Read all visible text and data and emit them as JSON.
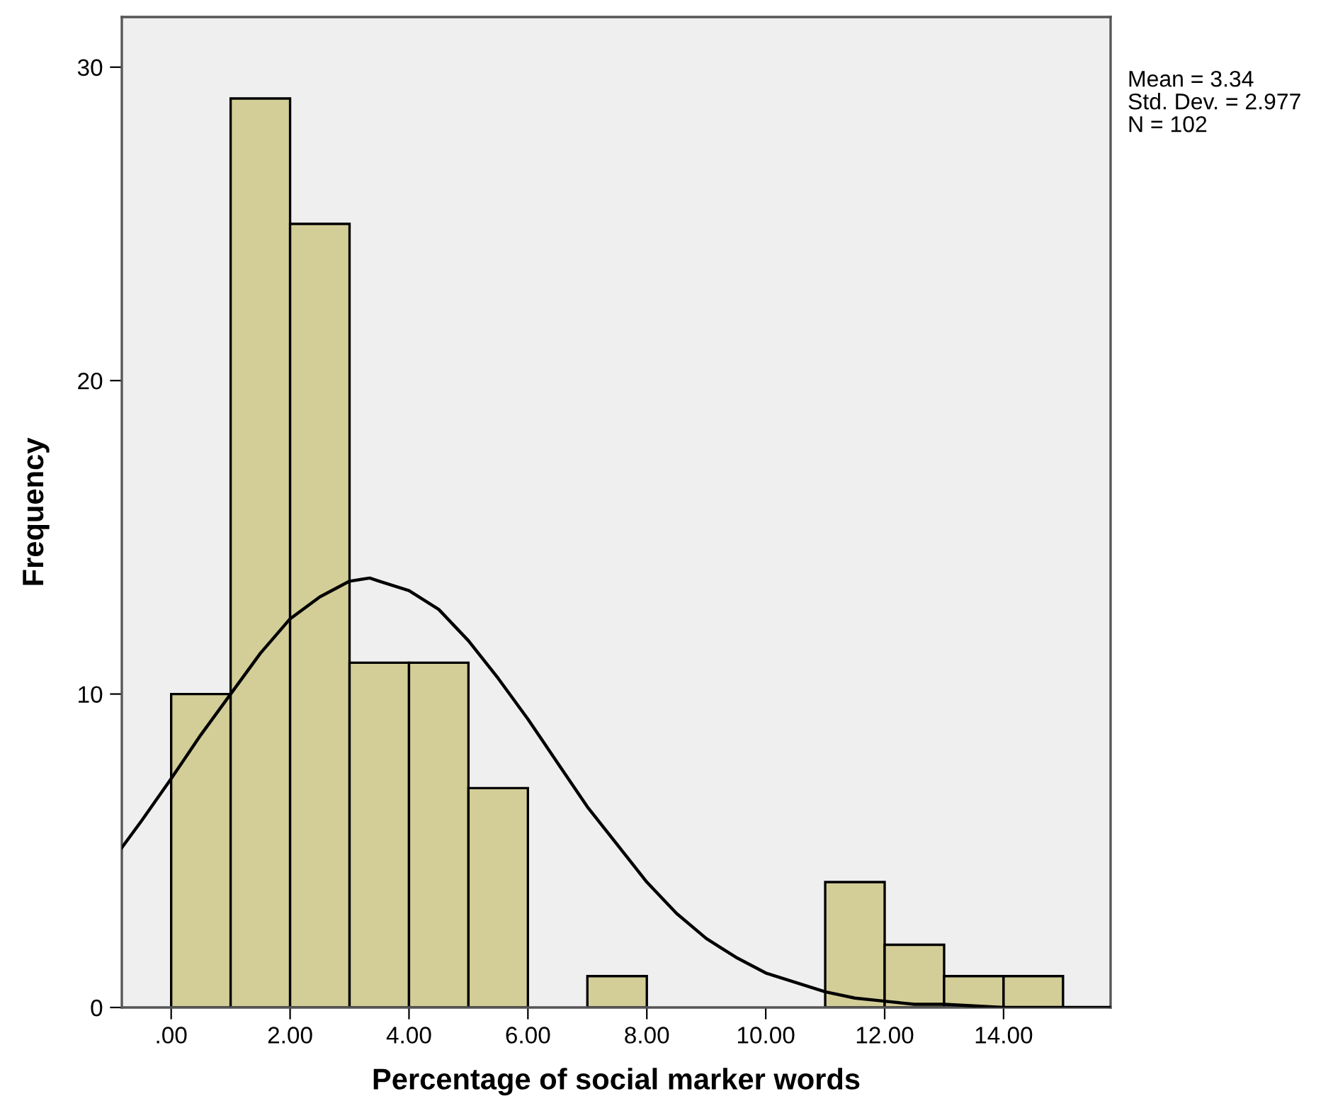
{
  "chart_data": {
    "type": "histogram",
    "xlabel": "Percentage of social marker words",
    "ylabel": "Frequency",
    "bins": [
      0,
      1,
      2,
      3,
      4,
      5,
      6,
      7,
      8,
      9,
      10,
      11,
      12,
      13,
      14,
      15
    ],
    "values": [
      10,
      29,
      25,
      11,
      11,
      7,
      0,
      1,
      0,
      0,
      0,
      4,
      2,
      1,
      1
    ],
    "color": "#d3ce97",
    "series": [
      {
        "type": "line",
        "color": "#000000",
        "x": [
          -0.83,
          -0.5,
          0,
          0.5,
          1,
          1.5,
          2,
          2.5,
          3,
          3.34,
          3.5,
          4,
          4.5,
          5,
          5.5,
          6,
          6.5,
          7,
          7.5,
          8,
          8.5,
          9,
          9.5,
          10,
          10.5,
          11,
          11.5,
          12,
          12.5,
          13,
          14,
          15,
          15.8
        ],
        "values": [
          5.1,
          5.95,
          7.3,
          8.7,
          10.0,
          11.3,
          12.4,
          13.1,
          13.6,
          13.7,
          13.6,
          13.3,
          12.7,
          11.7,
          10.5,
          9.2,
          7.8,
          6.4,
          5.2,
          4.0,
          3.0,
          2.2,
          1.6,
          1.1,
          0.8,
          0.5,
          0.3,
          0.2,
          0.1,
          0.1,
          0,
          0,
          0
        ]
      }
    ],
    "xlim": [
      -0.83,
      15.8
    ],
    "ylim": [
      0,
      31.6
    ],
    "xticks": [
      {
        "value": 0,
        "label": ".00"
      },
      {
        "value": 2,
        "label": "2.00"
      },
      {
        "value": 4,
        "label": "4.00"
      },
      {
        "value": 6,
        "label": "6.00"
      },
      {
        "value": 8,
        "label": "8.00"
      },
      {
        "value": 10,
        "label": "10.00"
      },
      {
        "value": 12,
        "label": "12.00"
      },
      {
        "value": 14,
        "label": "14.00"
      }
    ],
    "yticks": [
      0,
      10,
      20,
      30
    ],
    "annotations": [
      "Mean = 3.34",
      "Std. Dev. = 2.977",
      "N = 102"
    ],
    "grid": false,
    "legend": false
  }
}
